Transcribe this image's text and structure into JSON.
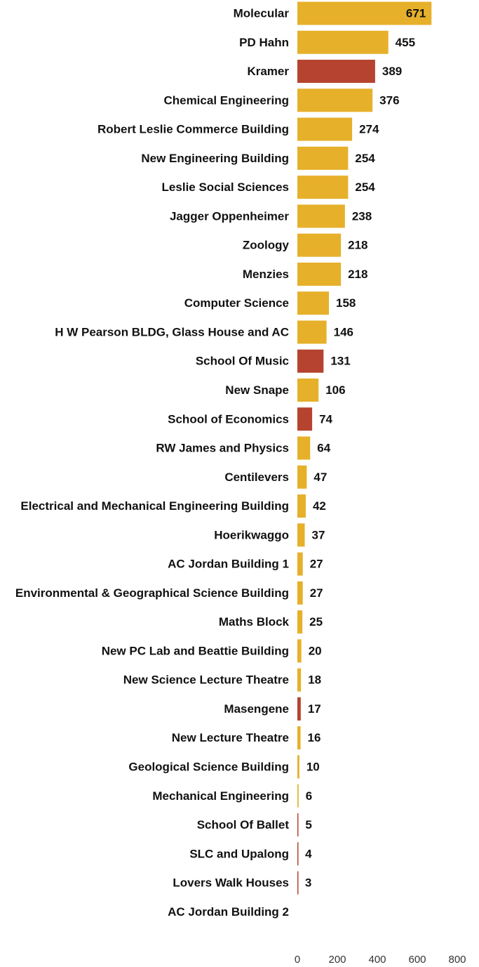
{
  "chart_data": {
    "type": "hbar",
    "categories": [
      "Molecular",
      "PD Hahn",
      "Kramer",
      "Chemical Engineering",
      "Robert Leslie Commerce Building",
      "New Engineering Building",
      "Leslie Social Sciences",
      "Jagger Oppenheimer",
      "Zoology",
      "Menzies",
      "Computer Science",
      "H W Pearson BLDG, Glass House and AC",
      "School Of Music",
      "New Snape",
      "School of Economics",
      "RW James and Physics",
      "Centilevers",
      "Electrical and Mechanical Engineering Building",
      "Hoerikwaggo",
      "AC Jordan Building 1",
      "Environmental & Geographical Science Building",
      "Maths Block",
      "New PC Lab and Beattie Building",
      "New Science Lecture Theatre",
      "Masengene",
      "New Lecture Theatre",
      "Geological Science Building",
      "Mechanical Engineering",
      "School Of Ballet",
      "SLC and Upalong",
      "Lovers Walk Houses",
      "AC Jordan Building 2"
    ],
    "values": [
      671,
      455,
      389,
      376,
      274,
      254,
      254,
      238,
      218,
      218,
      158,
      146,
      131,
      106,
      74,
      64,
      47,
      42,
      37,
      27,
      27,
      25,
      20,
      18,
      17,
      16,
      10,
      6,
      5,
      4,
      3,
      null
    ],
    "colors": [
      "#e6b02a",
      "#e6b02a",
      "#b5432f",
      "#e6b02a",
      "#e6b02a",
      "#e6b02a",
      "#e6b02a",
      "#e6b02a",
      "#e6b02a",
      "#e6b02a",
      "#e6b02a",
      "#e6b02a",
      "#b5432f",
      "#e6b02a",
      "#b5432f",
      "#e6b02a",
      "#e6b02a",
      "#e6b02a",
      "#e6b02a",
      "#e6b02a",
      "#e6b02a",
      "#e6b02a",
      "#e6b02a",
      "#e6b02a",
      "#b5432f",
      "#e6b02a",
      "#e6b02a",
      "#e6b02a",
      "#b5432f",
      "#b5432f",
      "#b5432f",
      "#e6b02a"
    ],
    "xlim": [
      0,
      800
    ],
    "xticks": [
      0,
      200,
      400,
      600,
      800
    ],
    "grid": false
  }
}
